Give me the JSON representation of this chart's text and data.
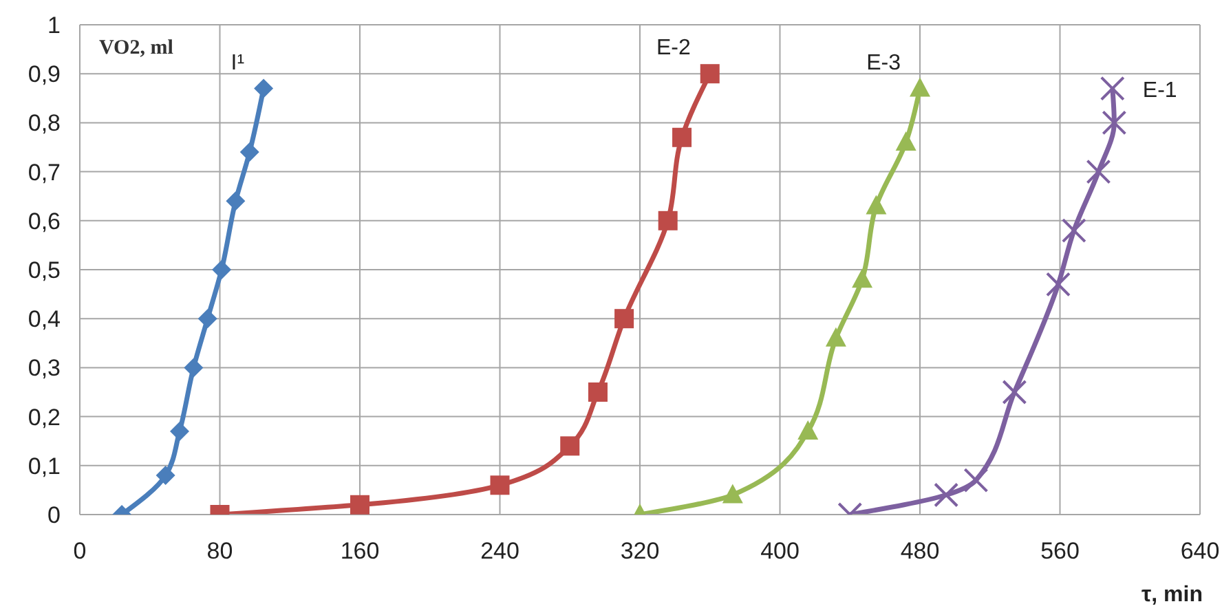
{
  "chart_data": {
    "type": "line",
    "ylabel": "VO2, ml",
    "xlabel": "τ, min",
    "xlim": [
      0,
      640
    ],
    "xticks": [
      0,
      80,
      160,
      240,
      320,
      400,
      480,
      560,
      640
    ],
    "ylim": [
      0,
      1
    ],
    "yticks": [
      0,
      {
        "value": 0.1,
        "label": "0,1"
      },
      {
        "value": 0.2,
        "label": "0,2"
      },
      {
        "value": 0.3,
        "label": "0,3"
      },
      {
        "value": 0.4,
        "label": "0,4"
      },
      {
        "value": 0.5,
        "label": "0,5"
      },
      {
        "value": 0.6,
        "label": "0,6"
      },
      {
        "value": 0.7,
        "label": "0,7"
      },
      {
        "value": 0.8,
        "label": "0,8"
      },
      {
        "value": 0.9,
        "label": "0,9"
      },
      1
    ],
    "grid": true,
    "series": [
      {
        "name": "I¹",
        "color": "#4a7ebb",
        "marker": "diamond",
        "x": [
          24,
          49,
          57,
          65,
          73,
          81,
          89,
          97,
          105
        ],
        "values": [
          0,
          0.08,
          0.17,
          0.3,
          0.4,
          0.5,
          0.64,
          0.74,
          0.87
        ]
      },
      {
        "name": "E-2",
        "color": "#be4b48",
        "marker": "square",
        "x": [
          80,
          160,
          240,
          280,
          296,
          311,
          336,
          344,
          360
        ],
        "values": [
          0,
          0.02,
          0.06,
          0.14,
          0.25,
          0.4,
          0.6,
          0.77,
          0.9
        ]
      },
      {
        "name": "E-3",
        "color": "#98b954",
        "marker": "triangle",
        "x": [
          320,
          373,
          416,
          432,
          447,
          455,
          472,
          480
        ],
        "values": [
          0,
          0.04,
          0.17,
          0.36,
          0.48,
          0.63,
          0.76,
          0.87
        ]
      },
      {
        "name": "E-1",
        "color": "#7d60a0",
        "marker": "cross",
        "x": [
          440,
          495,
          512,
          534,
          559,
          568,
          582,
          591,
          590
        ],
        "values": [
          0,
          0.04,
          0.07,
          0.25,
          0.47,
          0.58,
          0.7,
          0.8,
          0.87
        ]
      }
    ]
  }
}
